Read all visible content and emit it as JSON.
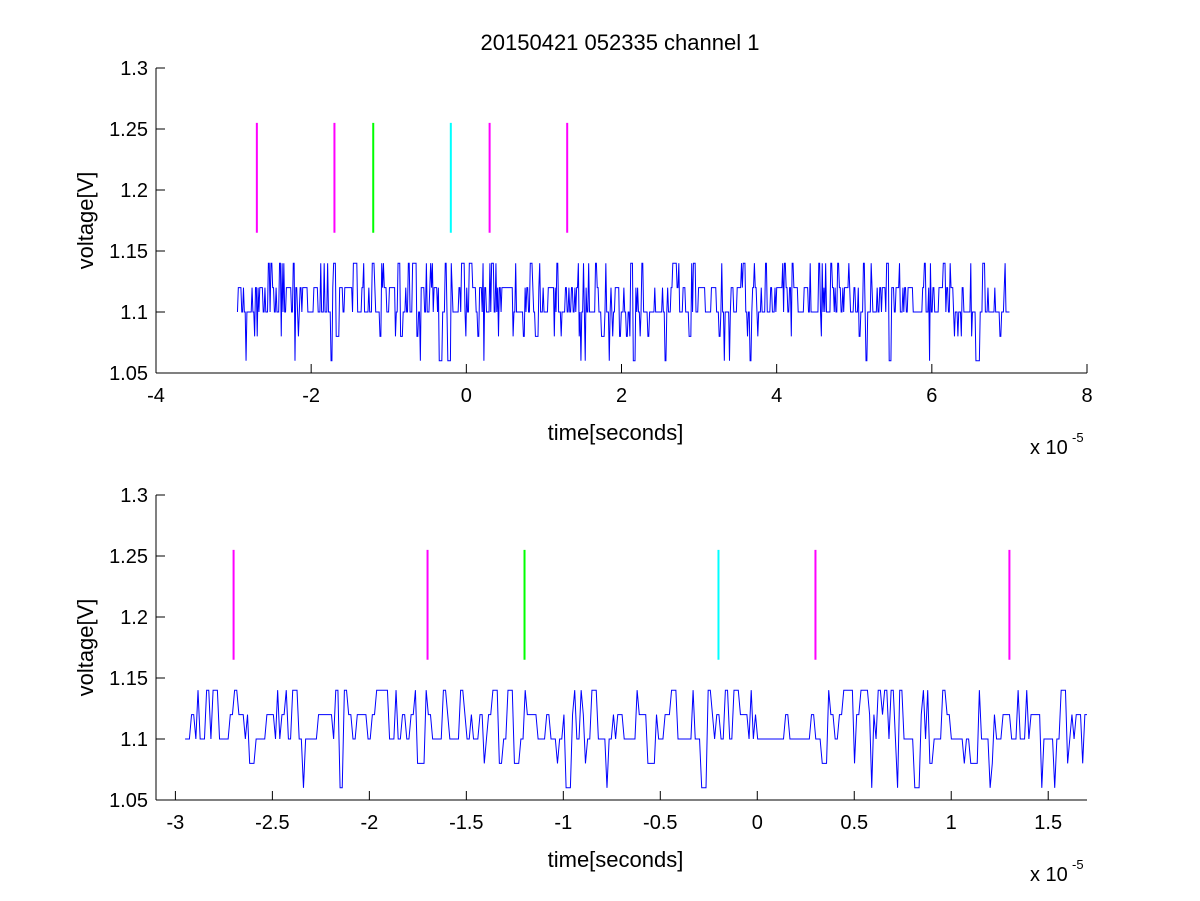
{
  "figure_title": "20150421 052335 channel 1",
  "chart_data": [
    {
      "type": "line",
      "title": "",
      "xlabel": "time[seconds]",
      "ylabel": "voltage[V]",
      "x_multiplier_label": "x 10",
      "x_multiplier_exponent": "-5",
      "xlim": [
        -4,
        8
      ],
      "ylim": [
        1.05,
        1.3
      ],
      "xticks": [
        -4,
        -2,
        0,
        2,
        4,
        6,
        8
      ],
      "xtick_labels": [
        "-4",
        "-2",
        "0",
        "2",
        "4",
        "6",
        "8"
      ],
      "yticks": [
        1.05,
        1.1,
        1.15,
        1.2,
        1.25,
        1.3
      ],
      "ytick_labels": [
        "1.05",
        "1.1",
        "1.15",
        "1.2",
        "1.25",
        "1.3"
      ],
      "grid": false,
      "signal": {
        "color": "#0000ff",
        "x_range": [
          -2.95,
          7.0
        ],
        "levels": [
          1.06,
          1.08,
          1.1,
          1.12,
          1.14
        ],
        "baseline": 1.1,
        "description_values": "quantized voltage noise trace sampled at levels 1.06, 1.08, 1.10, 1.12, 1.14 V"
      },
      "markers": [
        {
          "x": -2.7,
          "y": [
            1.165,
            1.255
          ],
          "color": "#ff00ff"
        },
        {
          "x": -1.7,
          "y": [
            1.165,
            1.255
          ],
          "color": "#ff00ff"
        },
        {
          "x": -1.2,
          "y": [
            1.165,
            1.255
          ],
          "color": "#00ff00"
        },
        {
          "x": -0.2,
          "y": [
            1.165,
            1.255
          ],
          "color": "#00ffff"
        },
        {
          "x": 0.3,
          "y": [
            1.165,
            1.255
          ],
          "color": "#ff00ff"
        },
        {
          "x": 1.3,
          "y": [
            1.165,
            1.255
          ],
          "color": "#ff00ff"
        }
      ]
    },
    {
      "type": "line",
      "title": "",
      "xlabel": "time[seconds]",
      "ylabel": "voltage[V]",
      "x_multiplier_label": "x 10",
      "x_multiplier_exponent": "-5",
      "xlim": [
        -3.1,
        1.7
      ],
      "ylim": [
        1.05,
        1.3
      ],
      "xticks": [
        -3,
        -2.5,
        -2,
        -1.5,
        -1,
        -0.5,
        0,
        0.5,
        1,
        1.5
      ],
      "xtick_labels": [
        "-3",
        "-2.5",
        "-2",
        "-1.5",
        "-1",
        "-0.5",
        "0",
        "0.5",
        "1",
        "1.5"
      ],
      "yticks": [
        1.05,
        1.1,
        1.15,
        1.2,
        1.25,
        1.3
      ],
      "ytick_labels": [
        "1.05",
        "1.1",
        "1.15",
        "1.2",
        "1.25",
        "1.3"
      ],
      "grid": false,
      "signal": {
        "color": "#0000ff",
        "x_range": [
          -2.95,
          1.7
        ],
        "levels": [
          1.06,
          1.08,
          1.1,
          1.12,
          1.14
        ],
        "baseline": 1.1,
        "description_values": "quantized voltage noise trace sampled at levels 1.06, 1.08, 1.10, 1.12, 1.14 V"
      },
      "markers": [
        {
          "x": -2.7,
          "y": [
            1.165,
            1.255
          ],
          "color": "#ff00ff"
        },
        {
          "x": -1.7,
          "y": [
            1.165,
            1.255
          ],
          "color": "#ff00ff"
        },
        {
          "x": -1.2,
          "y": [
            1.165,
            1.255
          ],
          "color": "#00ff00"
        },
        {
          "x": -0.2,
          "y": [
            1.165,
            1.255
          ],
          "color": "#00ffff"
        },
        {
          "x": 0.3,
          "y": [
            1.165,
            1.255
          ],
          "color": "#ff00ff"
        },
        {
          "x": 1.3,
          "y": [
            1.165,
            1.255
          ],
          "color": "#ff00ff"
        }
      ]
    }
  ]
}
